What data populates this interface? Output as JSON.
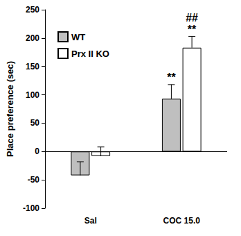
{
  "chart_data": {
    "type": "bar",
    "y_label": "Place preference (sec)",
    "categories": [
      "Sal",
      "COC 15.0"
    ],
    "series": [
      {
        "name": "WT",
        "color": "#bfbfbf",
        "values": [
          -42,
          93
        ],
        "errors": [
          24,
          25
        ],
        "annotations": [
          [],
          [
            "**"
          ]
        ]
      },
      {
        "name": "Prx II KO",
        "color": "#ffffff",
        "values": [
          -8,
          183
        ],
        "errors": [
          16,
          20
        ],
        "annotations": [
          [],
          [
            "**",
            "##"
          ]
        ]
      }
    ],
    "ylim": [
      -100,
      250
    ],
    "yticks": [
      -100,
      -50,
      0,
      50,
      100,
      150,
      200,
      250
    ],
    "legend": "upper left",
    "grid": false
  }
}
